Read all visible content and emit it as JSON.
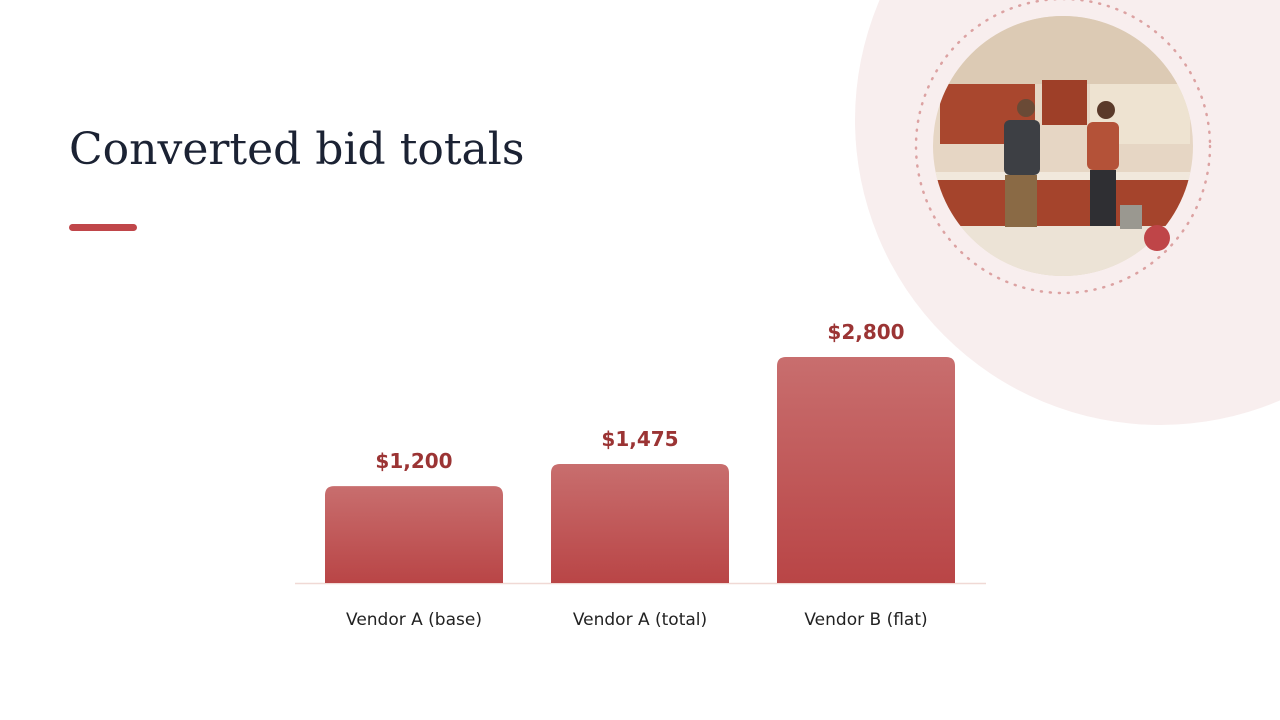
{
  "chart_data": {
    "type": "bar",
    "title": "Converted bid totals",
    "categories": [
      "Vendor A (base)",
      "Vendor A (total)",
      "Vendor B (flat)"
    ],
    "values": [
      1200,
      1475,
      2800
    ],
    "value_labels": [
      "$1,200",
      "$1,475",
      "$2,800"
    ],
    "color": "#bf4f50"
  }
}
